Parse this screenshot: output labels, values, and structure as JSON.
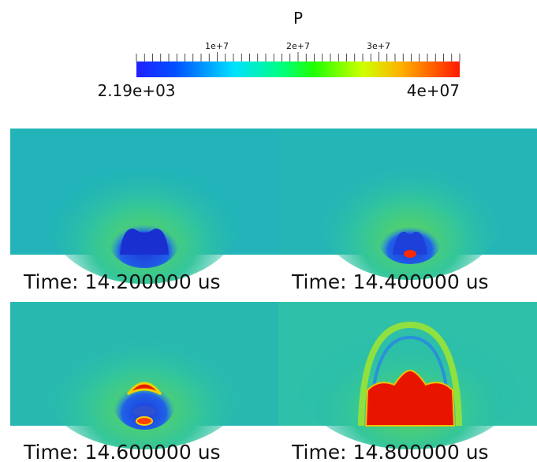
{
  "colorbar": {
    "title": "P",
    "min_label": "2.19e+03",
    "max_label": "4e+07",
    "ticks": [
      "1e+7",
      "2e+7",
      "3e+7"
    ]
  },
  "panels": [
    {
      "caption": "Time: 14.200000 us"
    },
    {
      "caption": "Time: 14.400000 us"
    },
    {
      "caption": "Time: 14.600000 us"
    },
    {
      "caption": "Time: 14.800000 us"
    }
  ]
}
